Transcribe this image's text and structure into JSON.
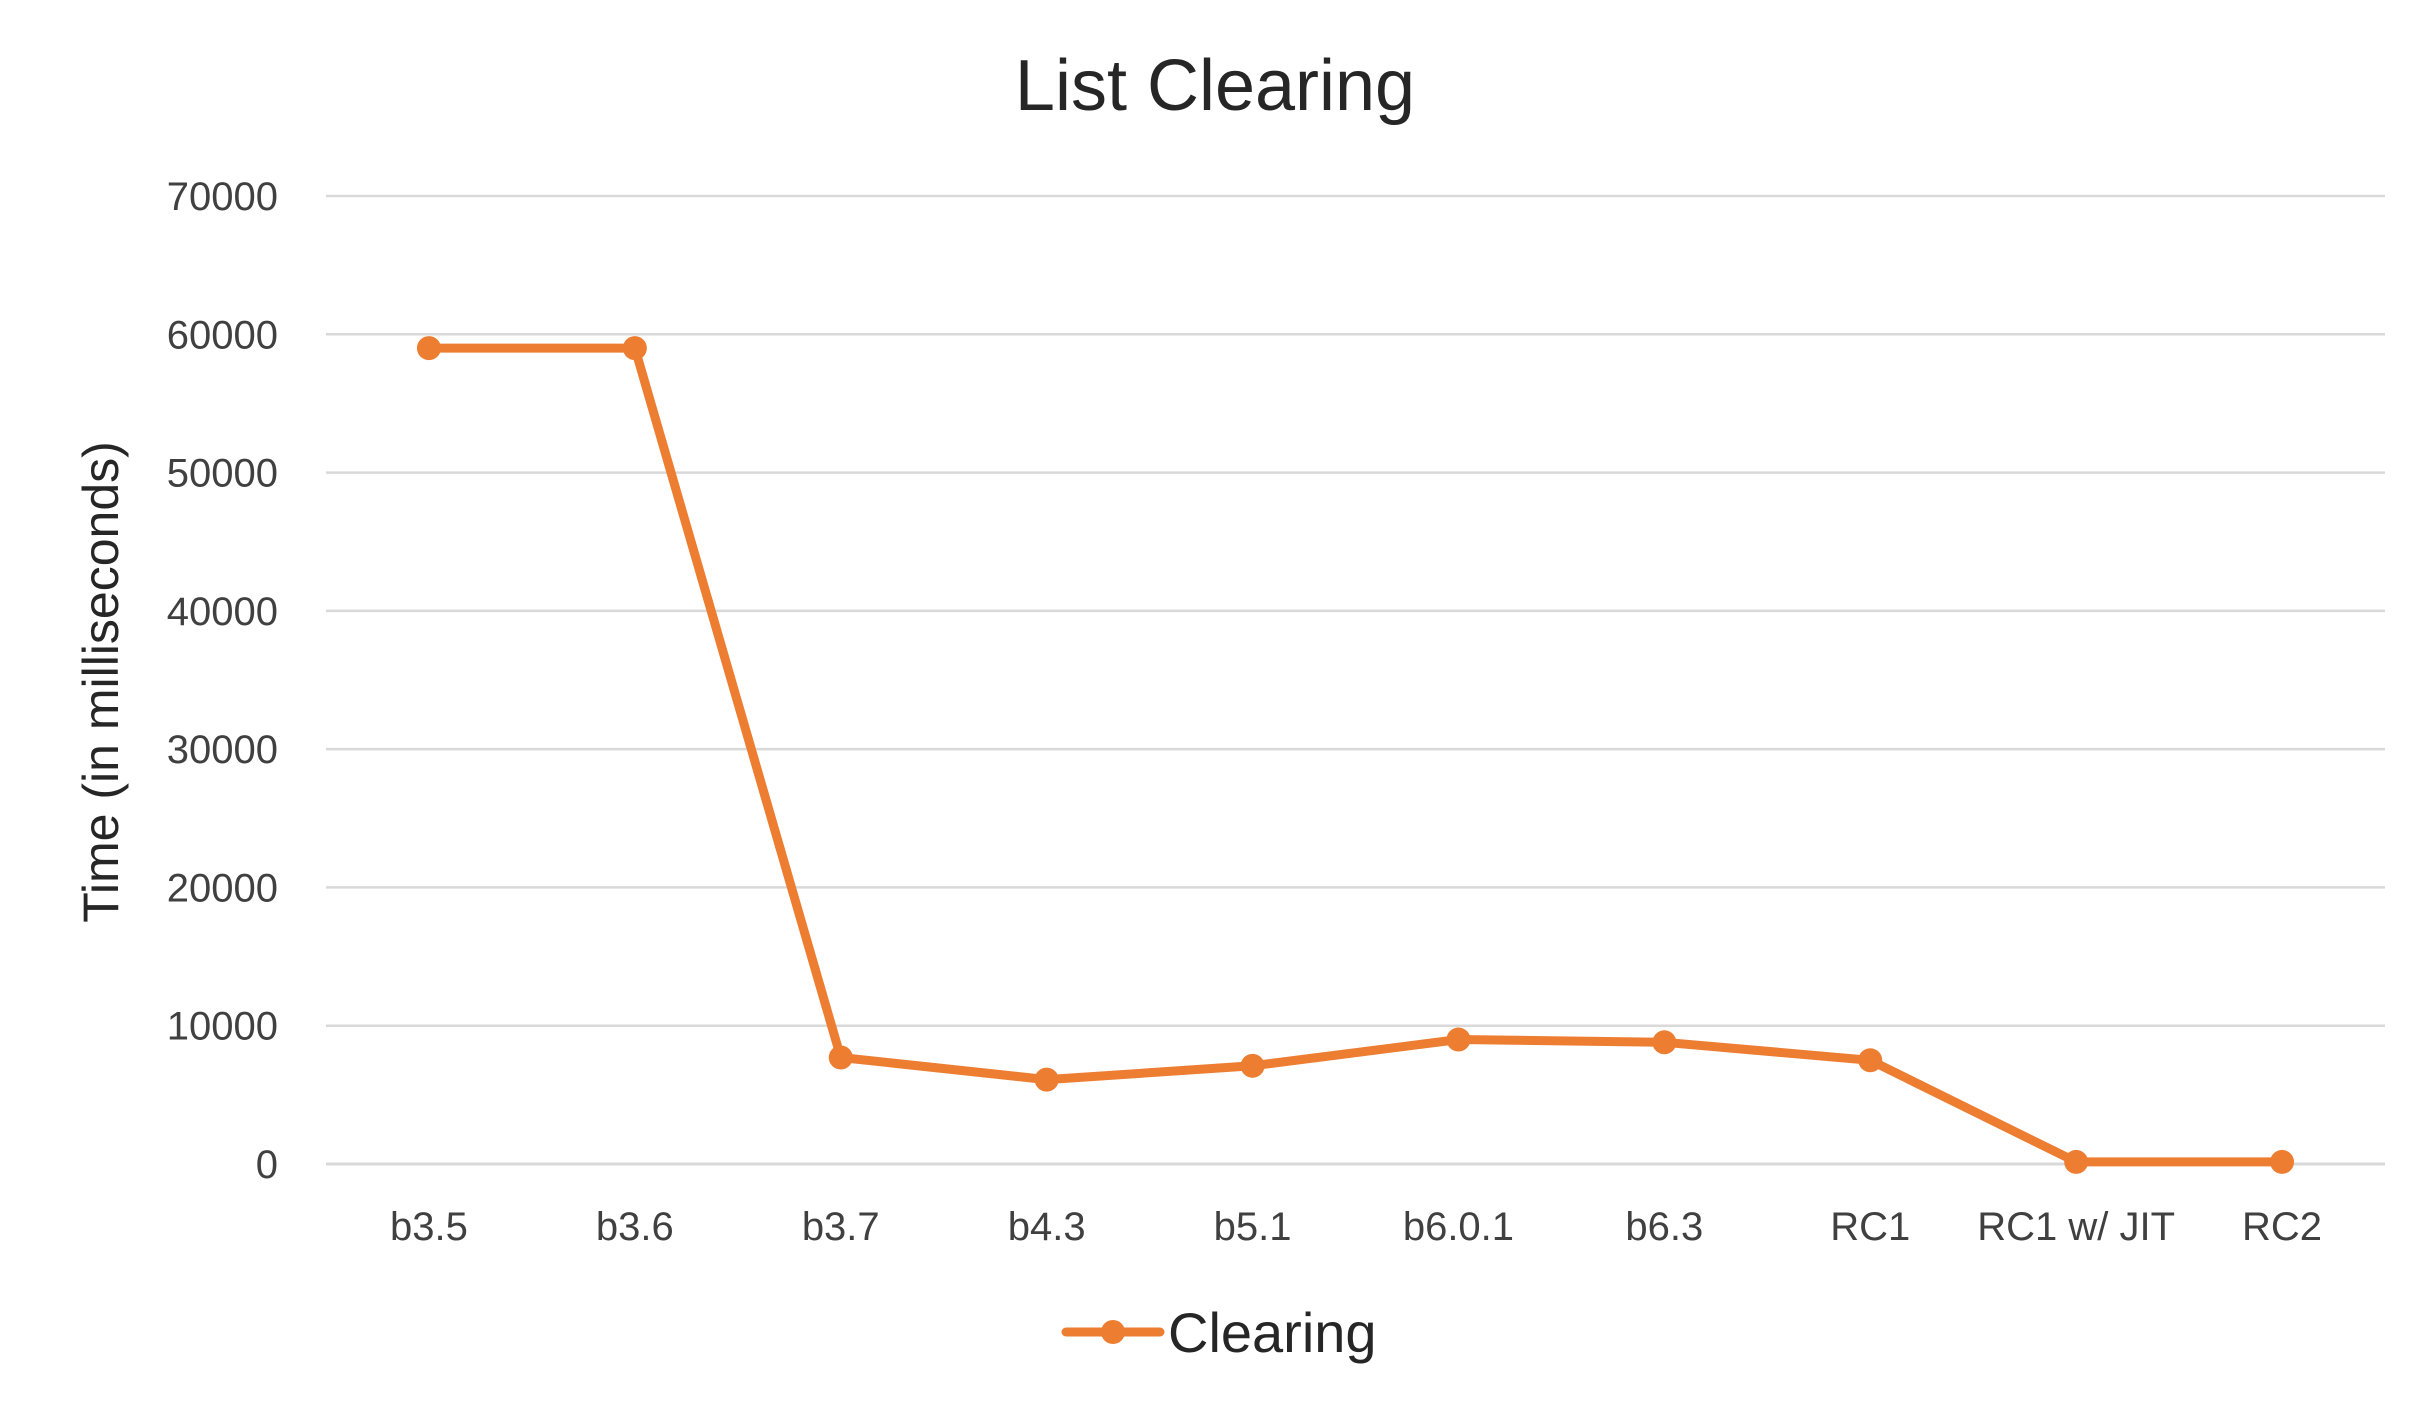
{
  "chart_data": {
    "type": "line",
    "title": "List Clearing",
    "xlabel": "",
    "ylabel": "Time (in milliseconds)",
    "ylim": [
      0,
      70000
    ],
    "yticks": [
      0,
      10000,
      20000,
      30000,
      40000,
      50000,
      60000,
      70000
    ],
    "grid": true,
    "legend_position": "bottom",
    "categories": [
      "b3.5",
      "b3.6",
      "b3.7",
      "b4.3",
      "b5.1",
      "b6.0.1",
      "b6.3",
      "RC1",
      "RC1 w/ JIT",
      "RC2"
    ],
    "series": [
      {
        "name": "Clearing",
        "color": "#ED7D31",
        "values": [
          59000,
          59000,
          7700,
          6100,
          7100,
          9000,
          8800,
          7500,
          150,
          150
        ]
      }
    ]
  }
}
